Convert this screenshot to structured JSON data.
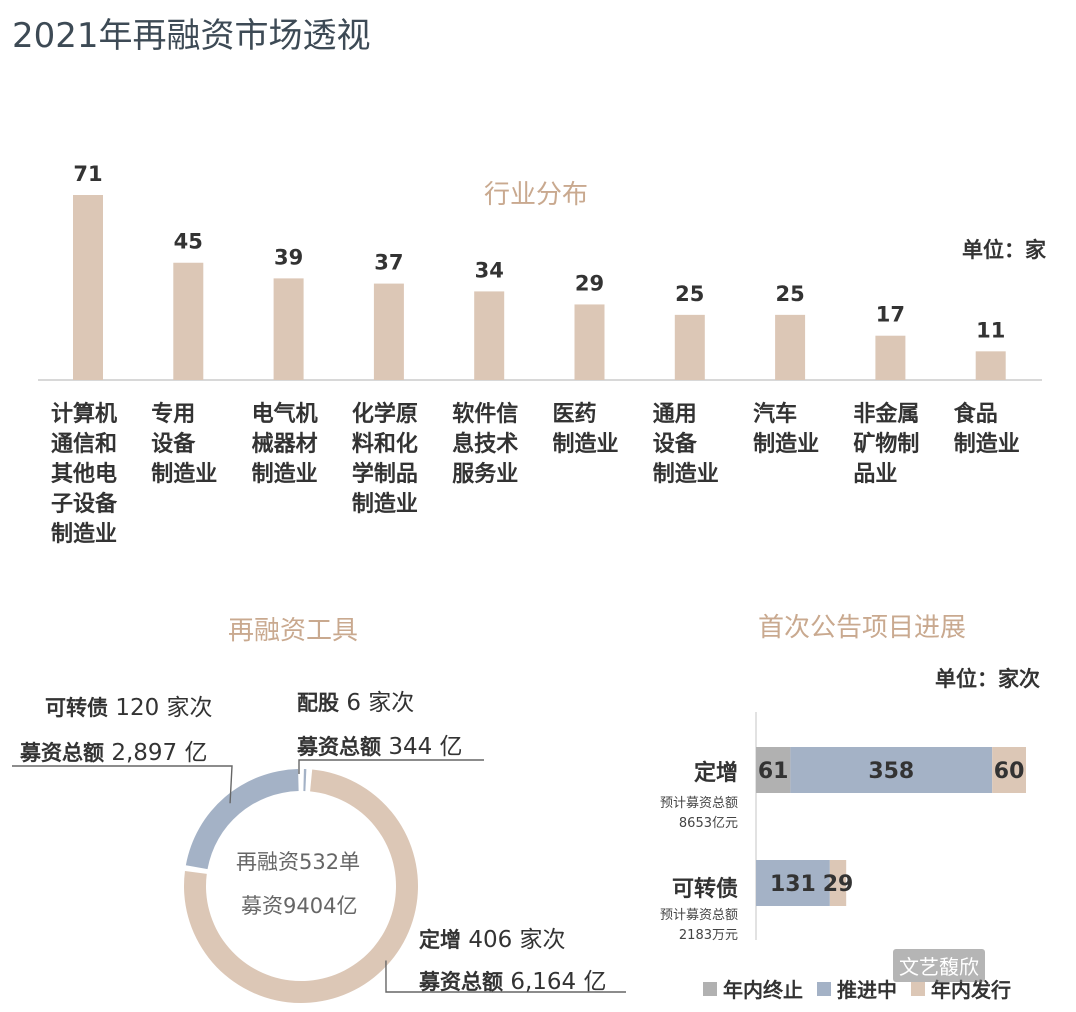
{
  "page": {
    "title": "2021年再融资市场透视"
  },
  "colors": {
    "beige": "#dcc7b6",
    "blue": "#a4b2c6",
    "gray": "#b1b1b1",
    "title_accent": "#c9a98f"
  },
  "chart_data": [
    {
      "type": "bar",
      "title": "行业分布",
      "unit_label": "单位：家",
      "categories": [
        [
          "计算机",
          "通信和",
          "其他电",
          "子设备",
          "制造业"
        ],
        [
          "专用",
          "设备",
          "制造业"
        ],
        [
          "电气机",
          "械器材",
          "制造业"
        ],
        [
          "化学原",
          "料和化",
          "学制品",
          "制造业"
        ],
        [
          "软件信",
          "息技术",
          "服务业"
        ],
        [
          "医药",
          "制造业"
        ],
        [
          "通用",
          "设备",
          "制造业"
        ],
        [
          "汽车",
          "制造业"
        ],
        [
          "非金属",
          "矿物制",
          "品业"
        ],
        [
          "食品",
          "制造业"
        ]
      ],
      "values": [
        71,
        45,
        39,
        37,
        34,
        29,
        25,
        25,
        17,
        11
      ],
      "ylim": [
        0,
        71
      ]
    },
    {
      "type": "pie",
      "title": "再融资工具",
      "center_lines": [
        "再融资532单",
        "募资9404亿"
      ],
      "slices": [
        {
          "label": "可转债",
          "count_text": "120 家次",
          "amount_label": "募资总额",
          "amount_text": "2,897 亿",
          "value": 120,
          "color": "#a4b2c6"
        },
        {
          "label": "配股",
          "count_text": "6 家次",
          "amount_label": "募资总额",
          "amount_text": "344 亿",
          "value": 6,
          "color": "#a4b2c6"
        },
        {
          "label": "定增",
          "count_text": "406 家次",
          "amount_label": "募资总额",
          "amount_text": "6,164 亿",
          "value": 406,
          "color": "#dcc7b6"
        }
      ]
    },
    {
      "type": "bar",
      "orientation": "horizontal-stacked",
      "title": "首次公告项目进展",
      "unit_label": "单位：家次",
      "series_names": [
        "年内终止",
        "推进中",
        "年内发行"
      ],
      "series_colors": [
        "#b1b1b1",
        "#a4b2c6",
        "#dcc7b6"
      ],
      "rows": [
        {
          "label": "定增",
          "sub": [
            "预计募资总额",
            "8653亿元"
          ],
          "values": [
            61,
            358,
            60
          ]
        },
        {
          "label": "可转债",
          "sub": [
            "预计募资总额",
            "2183万元"
          ],
          "values": [
            0,
            131,
            29
          ]
        }
      ]
    }
  ],
  "watermark": {
    "text": "文艺馥欣"
  }
}
